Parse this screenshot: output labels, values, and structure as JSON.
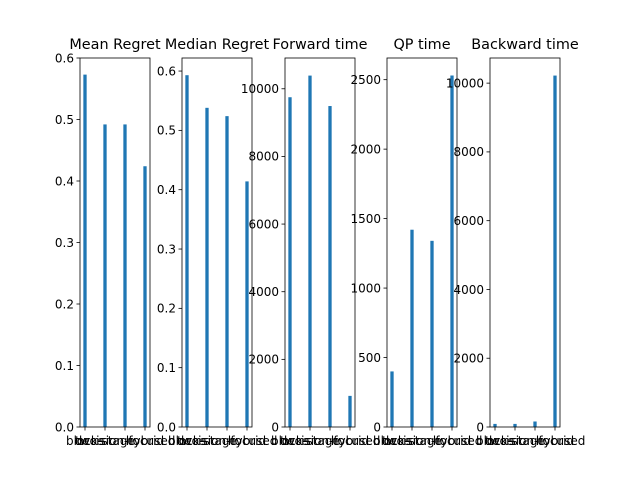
{
  "chart_data": [
    {
      "type": "bar",
      "title": "Mean Regret",
      "categories": [
        "blocks",
        "two-stage",
        "decision-focused",
        "hybrid"
      ],
      "values": [
        0.573,
        0.492,
        0.492,
        0.424
      ],
      "ylim": [
        0,
        0.6
      ],
      "yticks": [
        0.0,
        0.1,
        0.2,
        0.3,
        0.4,
        0.5,
        0.6
      ],
      "ytick_labels": [
        "0.0",
        "0.1",
        "0.2",
        "0.3",
        "0.4",
        "0.5",
        "0.6"
      ],
      "color": "#1f77b4"
    },
    {
      "type": "bar",
      "title": "Median Regret",
      "categories": [
        "blocks",
        "two-stage",
        "decision-focused",
        "hybrid"
      ],
      "values": [
        0.593,
        0.538,
        0.524,
        0.414
      ],
      "ylim": [
        0,
        0.622
      ],
      "yticks": [
        0.0,
        0.1,
        0.2,
        0.3,
        0.4,
        0.5,
        0.6
      ],
      "ytick_labels": [
        "0.0",
        "0.1",
        "0.2",
        "0.3",
        "0.4",
        "0.5",
        "0.6"
      ],
      "color": "#1f77b4"
    },
    {
      "type": "bar",
      "title": "Forward time",
      "categories": [
        "blocks",
        "two-stage",
        "decision-focused",
        "hybrid"
      ],
      "values": [
        9750,
        10390,
        9490,
        920
      ],
      "ylim": [
        0,
        10910
      ],
      "yticks": [
        0,
        2000,
        4000,
        6000,
        8000,
        10000
      ],
      "ytick_labels": [
        "0",
        "2000",
        "4000",
        "6000",
        "8000",
        "10000"
      ],
      "color": "#1f77b4"
    },
    {
      "type": "bar",
      "title": "QP time",
      "categories": [
        "blocks",
        "two-stage",
        "decision-focused",
        "hybrid"
      ],
      "values": [
        400,
        1420,
        1340,
        2530
      ],
      "ylim": [
        0,
        2656
      ],
      "yticks": [
        0,
        500,
        1000,
        1500,
        2000,
        2500
      ],
      "ytick_labels": [
        "0",
        "500",
        "1000",
        "1500",
        "2000",
        "2500"
      ],
      "color": "#1f77b4"
    },
    {
      "type": "bar",
      "title": "Backward time",
      "categories": [
        "blocks",
        "two-stage",
        "decision-focused",
        "hybrid"
      ],
      "values": [
        90,
        90,
        160,
        10220
      ],
      "ylim": [
        0,
        10731
      ],
      "yticks": [
        0,
        2000,
        4000,
        6000,
        8000,
        10000
      ],
      "ytick_labels": [
        "0",
        "2000",
        "4000",
        "6000",
        "8000",
        "10000"
      ],
      "color": "#1f77b4"
    }
  ]
}
